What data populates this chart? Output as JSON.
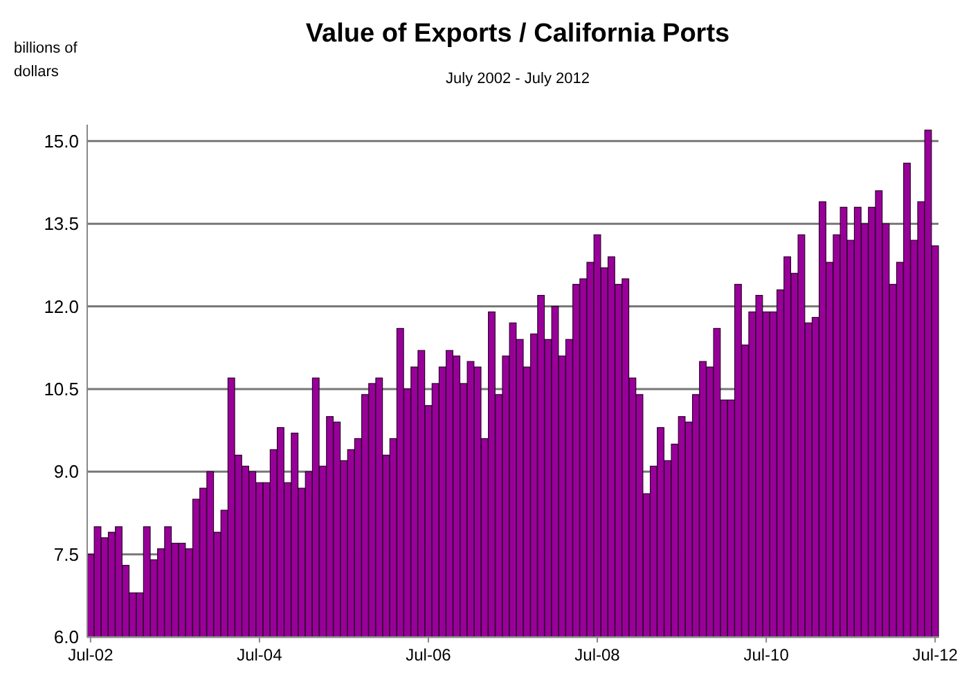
{
  "chart_data": {
    "type": "bar",
    "title": "Value of Exports / California Ports",
    "subtitle": "July 2002 - July 2012",
    "ylabel": "billions of dollars",
    "categories": [
      "Jul-02",
      null,
      null,
      null,
      null,
      null,
      null,
      null,
      null,
      null,
      null,
      null,
      null,
      null,
      null,
      null,
      null,
      null,
      null,
      null,
      null,
      null,
      null,
      null,
      "Jul-04",
      null,
      null,
      null,
      null,
      null,
      null,
      null,
      null,
      null,
      null,
      null,
      null,
      null,
      null,
      null,
      null,
      null,
      null,
      null,
      null,
      null,
      null,
      null,
      "Jul-06",
      null,
      null,
      null,
      null,
      null,
      null,
      null,
      null,
      null,
      null,
      null,
      null,
      null,
      null,
      null,
      null,
      null,
      null,
      null,
      null,
      null,
      null,
      null,
      "Jul-08",
      null,
      null,
      null,
      null,
      null,
      null,
      null,
      null,
      null,
      null,
      null,
      null,
      null,
      null,
      null,
      null,
      null,
      null,
      null,
      null,
      null,
      null,
      null,
      "Jul-10",
      null,
      null,
      null,
      null,
      null,
      null,
      null,
      null,
      null,
      null,
      null,
      null,
      null,
      null,
      null,
      null,
      null,
      null,
      null,
      null,
      null,
      null,
      null,
      "Jul-12"
    ],
    "values": [
      7.5,
      8.0,
      7.8,
      7.9,
      8.0,
      7.3,
      6.8,
      6.8,
      8.0,
      7.4,
      7.6,
      8.0,
      7.7,
      7.7,
      7.6,
      8.5,
      8.7,
      9.0,
      7.9,
      8.3,
      10.7,
      9.3,
      9.1,
      9.0,
      8.8,
      8.8,
      9.4,
      9.8,
      8.8,
      9.7,
      8.7,
      9.0,
      10.7,
      9.1,
      10.0,
      9.9,
      9.2,
      9.4,
      9.6,
      10.4,
      10.6,
      10.7,
      9.3,
      9.6,
      11.6,
      10.5,
      10.9,
      11.2,
      10.2,
      10.6,
      10.9,
      11.2,
      11.1,
      10.6,
      11.0,
      10.9,
      9.6,
      11.9,
      10.4,
      11.1,
      11.7,
      11.4,
      10.9,
      11.5,
      12.2,
      11.4,
      12.0,
      11.1,
      11.4,
      12.4,
      12.5,
      12.8,
      13.3,
      12.7,
      12.9,
      12.4,
      12.5,
      10.7,
      10.4,
      8.6,
      9.1,
      9.8,
      9.2,
      9.5,
      10.0,
      9.9,
      10.4,
      11.0,
      10.9,
      11.6,
      10.3,
      10.3,
      12.4,
      11.3,
      11.9,
      12.2,
      11.9,
      11.9,
      12.3,
      12.9,
      12.6,
      13.3,
      11.7,
      11.8,
      13.9,
      12.8,
      13.3,
      13.8,
      13.2,
      13.8,
      13.5,
      13.8,
      14.1,
      13.5,
      12.4,
      12.8,
      14.6,
      13.2,
      13.9,
      15.2,
      13.1
    ],
    "color": "#990099",
    "ylim": [
      6,
      15.3
    ],
    "yticks": [
      {
        "value": 6,
        "label": "6.0"
      },
      {
        "value": 7.5,
        "label": "7.5"
      },
      {
        "value": 9,
        "label": "9.0"
      },
      {
        "value": 10.5,
        "label": "10.5"
      },
      {
        "value": 12,
        "label": "12.0"
      },
      {
        "value": 13.5,
        "label": "13.5"
      },
      {
        "value": 15,
        "label": "15.0"
      }
    ],
    "grid": "y"
  }
}
